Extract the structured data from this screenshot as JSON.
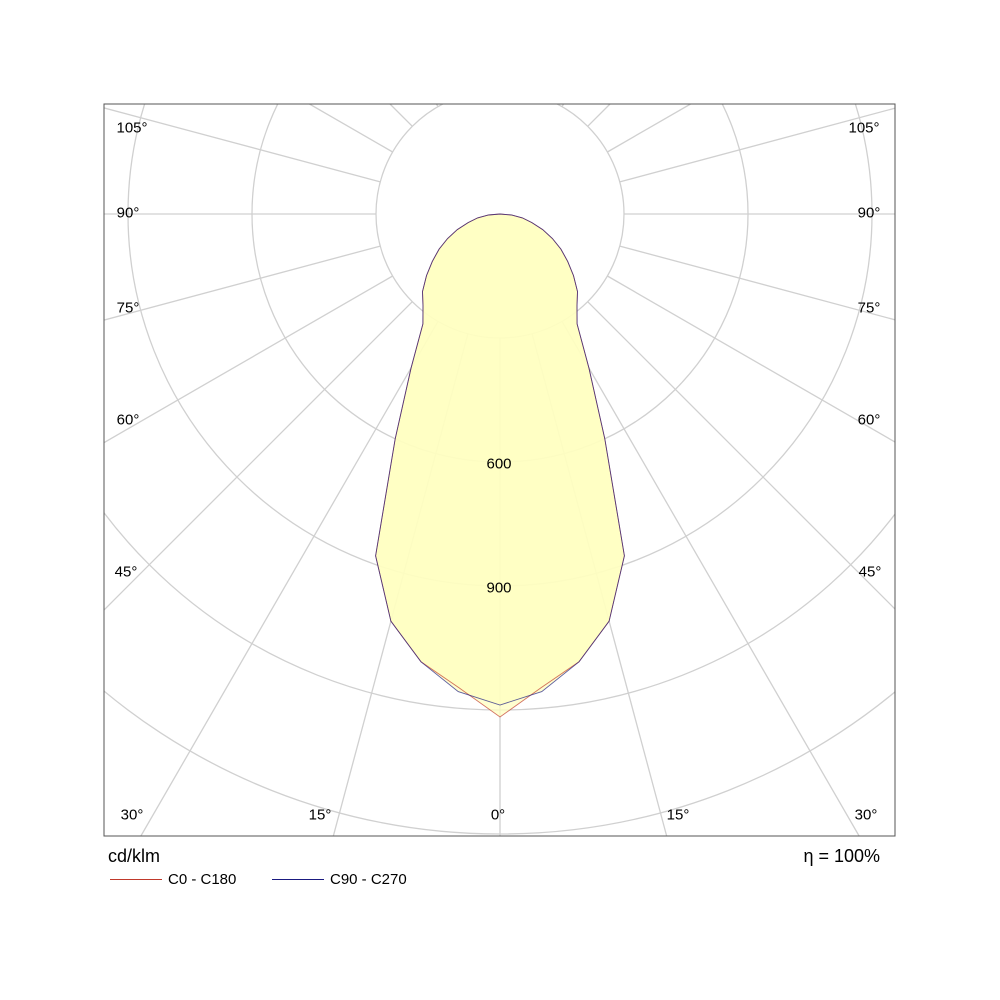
{
  "chart_data": {
    "type": "polar",
    "unit_label": "cd/klm",
    "efficiency_label": "η = 100%",
    "radial_tick_labels": [
      "600",
      "900"
    ],
    "radial_ticks": [
      300,
      600,
      900,
      1200,
      1500,
      1800
    ],
    "angle_labels": {
      "bottom": [
        "30°",
        "15°",
        "0°",
        "15°",
        "30°"
      ],
      "left": [
        "45°",
        "60°",
        "75°",
        "90°",
        "105°"
      ],
      "right": [
        "45°",
        "60°",
        "75°",
        "90°",
        "105°"
      ]
    },
    "angles_deg": [
      0,
      5,
      10,
      15,
      20,
      25,
      30,
      35,
      40,
      45,
      50,
      55,
      60,
      65,
      70,
      75,
      80,
      85,
      90
    ],
    "series": [
      {
        "name": "C0 - C180",
        "color": "#c0392b",
        "values": [
          1217,
          1150,
          1100,
          1020,
          880,
          600,
          430,
          325,
          290,
          265,
          232,
          200,
          170,
          140,
          110,
          80,
          55,
          28,
          0
        ]
      },
      {
        "name": "C90 - C270",
        "color": "#1a1a80",
        "values": [
          1188,
          1160,
          1100,
          1020,
          880,
          600,
          430,
          325,
          290,
          265,
          232,
          200,
          170,
          140,
          110,
          80,
          55,
          28,
          0
        ]
      }
    ],
    "fill_color": "#ffffc0",
    "grid": true
  }
}
